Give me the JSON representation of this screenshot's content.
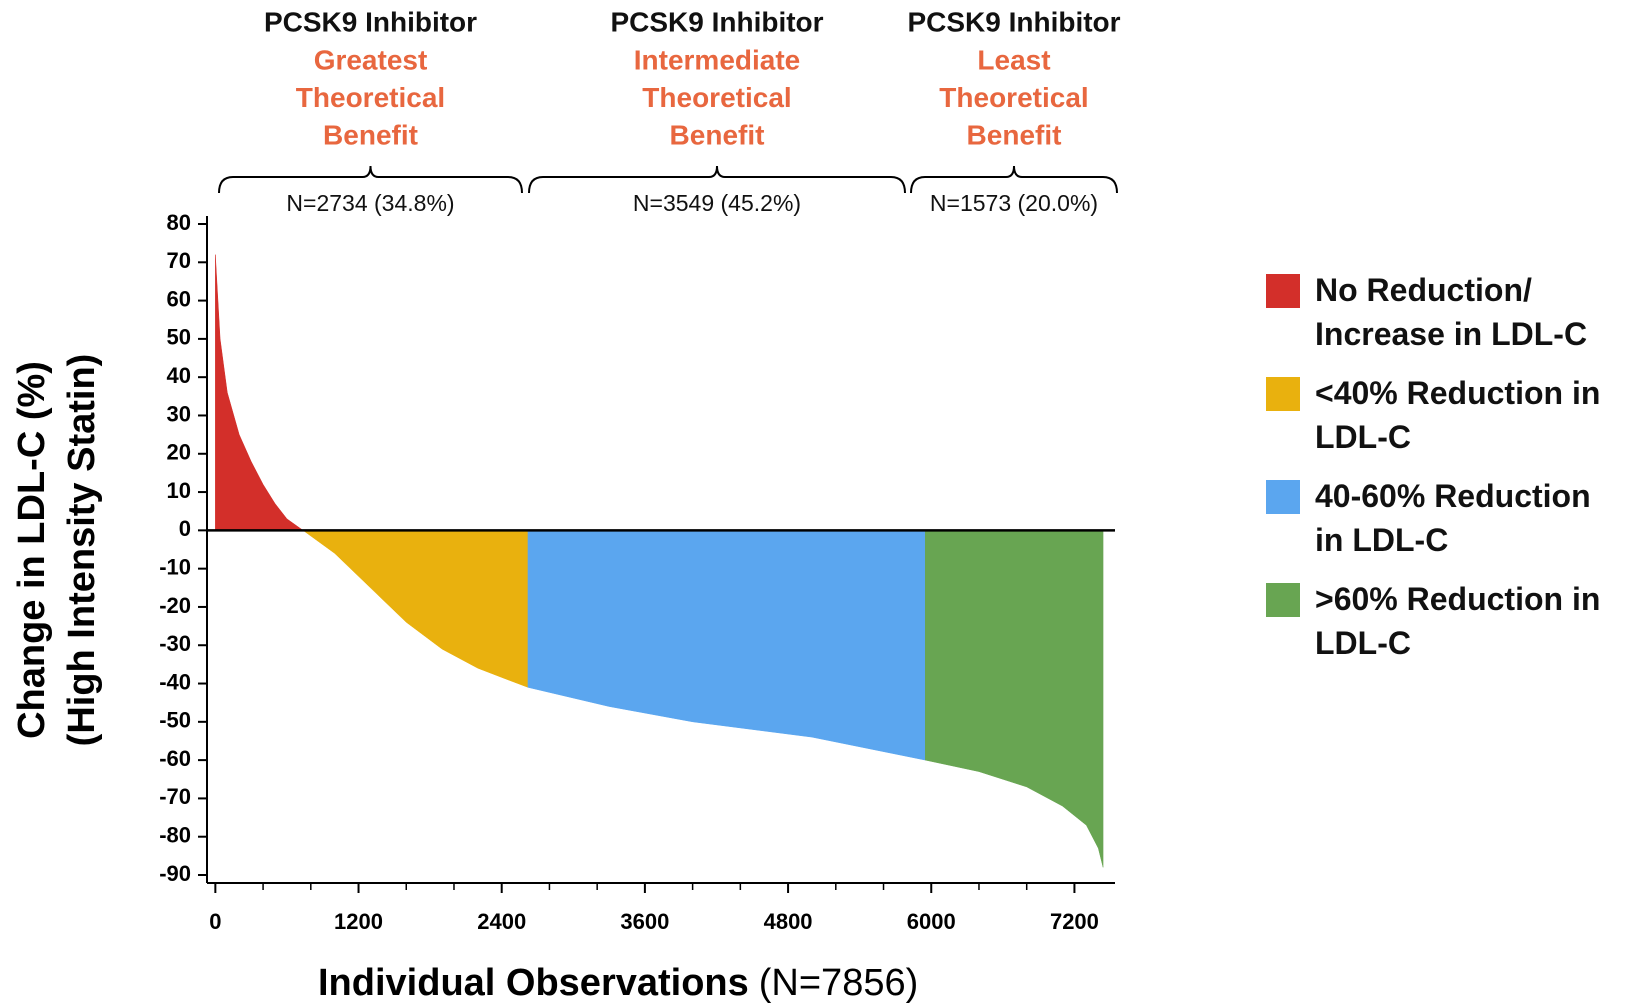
{
  "chart_data": {
    "type": "area",
    "x_label": "Individual Observations",
    "x_label_note": "(N=7856)",
    "y_label": [
      "Change in LDL-C (%)",
      "(High Intensity Statin)"
    ],
    "groups": [
      {
        "title": "PCSK9 Inhibitor",
        "benefit": [
          "Greatest",
          "Theoretical",
          "Benefit"
        ],
        "n": "N=2734 (34.8%)"
      },
      {
        "title": "PCSK9 Inhibitor",
        "benefit": [
          "Intermediate",
          "Theoretical",
          "Benefit"
        ],
        "n": "N=3549 (45.2%)"
      },
      {
        "title": "PCSK9 Inhibitor",
        "benefit": [
          "Least",
          "Theoretical",
          "Benefit"
        ],
        "n": "N=1573 (20.0%)"
      }
    ],
    "benefit_color": "#e8673f",
    "series": [
      {
        "name": "No Reduction/ Increase in LDL-C",
        "color": "#d32f2a",
        "x": [
          0,
          40,
          100,
          200,
          300,
          400,
          500,
          600,
          735
        ],
        "values": [
          72,
          50,
          36,
          25,
          18,
          12,
          7,
          3,
          0
        ]
      },
      {
        "name": "<40% Reduction in LDL-C",
        "color": "#e9b10e",
        "x": [
          735,
          1000,
          1300,
          1600,
          1900,
          2200,
          2450,
          2620
        ],
        "values": [
          0,
          -6,
          -15,
          -24,
          -31,
          -36,
          -39,
          -41
        ]
      },
      {
        "name": "40-60% Reduction in LDL-C",
        "color": "#5ba6ef",
        "x": [
          2620,
          3300,
          4000,
          5000,
          5950
        ],
        "values": [
          -41,
          -46,
          -50,
          -54,
          -60
        ]
      },
      {
        "name": ">60% Reduction in LDL-C",
        "color": "#68a552",
        "x": [
          5950,
          6400,
          6800,
          7100,
          7300,
          7400,
          7440
        ],
        "values": [
          -60,
          -63,
          -67,
          -72,
          -77,
          -83,
          -88
        ]
      }
    ],
    "xlim": [
      -70,
      7540
    ],
    "xticks": [
      0,
      1200,
      2400,
      3600,
      4800,
      6000,
      7200
    ],
    "xminorticks": [
      400,
      800,
      1600,
      2000,
      2800,
      3200,
      4000,
      4400,
      5200,
      5600,
      6400,
      6800
    ],
    "ylim": [
      -90,
      80
    ],
    "yticks": [
      80,
      70,
      60,
      50,
      40,
      30,
      20,
      10,
      0,
      -10,
      -20,
      -30,
      -40,
      -50,
      -60,
      -70,
      -80,
      -90
    ]
  }
}
